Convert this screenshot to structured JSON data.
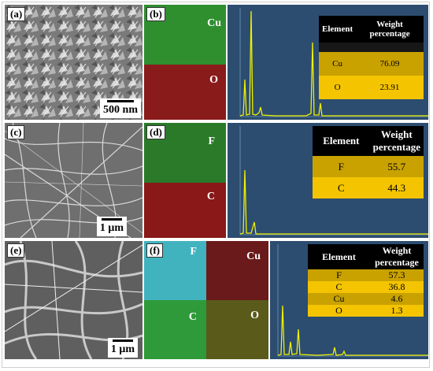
{
  "row_a": {
    "sem_label": "(a)",
    "scale_text": "500 nm",
    "map_label": "(b)",
    "elements": [
      {
        "name": "Cu"
      },
      {
        "name": "O"
      }
    ],
    "table": {
      "headers": [
        "Element",
        "Weight percentage"
      ],
      "rows": [
        {
          "element": "Cu",
          "value": "76.09"
        },
        {
          "element": "O",
          "value": "23.91"
        }
      ]
    }
  },
  "row_c": {
    "sem_label": "(c)",
    "scale_text": "1 μm",
    "map_label": "(d)",
    "elements": [
      {
        "name": "F"
      },
      {
        "name": "C"
      }
    ],
    "table": {
      "headers": [
        "Element",
        "Weight percentage"
      ],
      "rows": [
        {
          "element": "F",
          "value": "55.7"
        },
        {
          "element": "C",
          "value": "44.3"
        }
      ]
    }
  },
  "row_e": {
    "sem_label": "(e)",
    "scale_text": "1 μm",
    "map_label": "(f)",
    "elements": [
      {
        "name": "F"
      },
      {
        "name": "Cu"
      },
      {
        "name": "C"
      },
      {
        "name": "O"
      }
    ],
    "table": {
      "headers": [
        "Element",
        "Weight percentage"
      ],
      "rows": [
        {
          "element": "F",
          "value": "57.3"
        },
        {
          "element": "C",
          "value": "36.8"
        },
        {
          "element": "Cu",
          "value": "4.6"
        },
        {
          "element": "O",
          "value": "1.3"
        }
      ]
    }
  },
  "colors": {
    "cu_map": "#2f8f2f",
    "o_map": "#8a1b1b",
    "f_map": "#2a7a2a",
    "c_map": "#8a1818",
    "f_map_f": "#41b3bf",
    "cu_map_f": "#6a1a1a",
    "c_map_f": "#2f9a3a",
    "o_map_f": "#5a5a1a",
    "spectrum_bg": "#2c4d70",
    "spectrum_line": "#f0f000",
    "table_header": "#000000",
    "table_row_dark": "#c9a200",
    "table_row_light": "#f4c400"
  }
}
